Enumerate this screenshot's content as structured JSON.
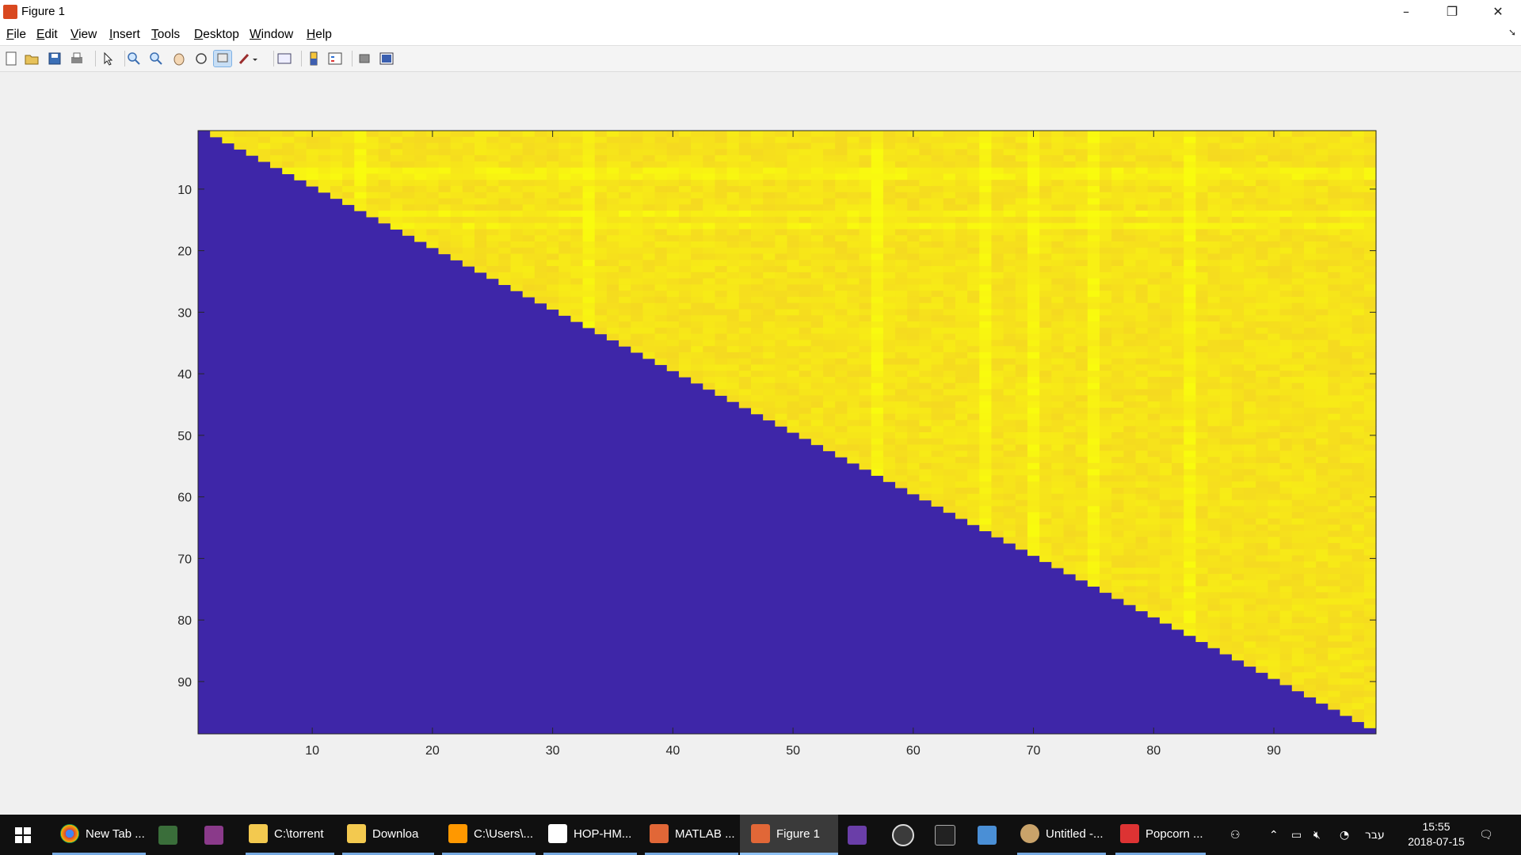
{
  "window": {
    "title": "Figure 1",
    "controls": {
      "minimize": "–",
      "maximize": "❐",
      "close": "✕"
    }
  },
  "menu": [
    "File",
    "Edit",
    "View",
    "Insert",
    "Tools",
    "Desktop",
    "Window",
    "Help"
  ],
  "toolbar_icons": [
    "new-figure-icon",
    "open-file-icon",
    "save-icon",
    "print-icon",
    "select-arrow-icon",
    "zoom-in-icon",
    "zoom-out-icon",
    "pan-hand-icon",
    "rotate-3d-icon",
    "data-cursor-icon",
    "brush-icon",
    "link-plot-icon",
    "colorbar-icon",
    "legend-icon",
    "hide-plot-tools-icon",
    "show-plot-tools-icon"
  ],
  "chart_data": {
    "type": "heatmap",
    "title": "",
    "xlabel": "",
    "ylabel": "",
    "xlim": [
      0.5,
      98.5
    ],
    "ylim": [
      0.5,
      98.5
    ],
    "y_reversed": true,
    "grid": false,
    "xticks": [
      10,
      20,
      30,
      40,
      50,
      60,
      70,
      80,
      90
    ],
    "yticks": [
      10,
      20,
      30,
      40,
      50,
      60,
      70,
      80,
      90
    ],
    "n_rows": 98,
    "n_cols": 98,
    "structure": "upper triangular matrix: cells with column > row are high values (yellow/orange, ~0.85-1.0); diagonal and below are low (dark blue/purple)",
    "colormap": "parula",
    "colors": {
      "low": "#3e26a8",
      "high": "#f9fb0e",
      "mid_high": "#f5bf2c"
    },
    "highlighted_bright_columns": [
      14,
      33,
      57,
      66,
      70,
      75,
      83
    ],
    "highlighted_bright_rows": [
      7,
      8,
      14,
      16
    ]
  },
  "taskbar": {
    "items": [
      {
        "label": "New Tab ...",
        "icon": "chrome-icon"
      },
      {
        "label": "",
        "icon": "terminal-icon"
      },
      {
        "label": "",
        "icon": "winrar-icon"
      },
      {
        "label": "C:\\torrent",
        "icon": "folder-icon"
      },
      {
        "label": "Downloa",
        "icon": "folder-download-icon"
      },
      {
        "label": "C:\\Users\\...",
        "icon": "sublime-icon"
      },
      {
        "label": "HOP-HM...",
        "icon": "code-icon"
      },
      {
        "label": "MATLAB ...",
        "icon": "matlab-icon"
      },
      {
        "label": "Figure 1",
        "icon": "figure-icon"
      },
      {
        "label": "",
        "icon": "visual-studio-icon"
      },
      {
        "label": "",
        "icon": "settings-gear-icon"
      },
      {
        "label": "",
        "icon": "epic-games-icon"
      },
      {
        "label": "",
        "icon": "app-grid-icon"
      },
      {
        "label": "Untitled -...",
        "icon": "paint-icon"
      },
      {
        "label": "Popcorn ...",
        "icon": "popcorn-icon"
      }
    ],
    "language": "עבר",
    "time": "15:55",
    "date": "2018-07-15"
  }
}
